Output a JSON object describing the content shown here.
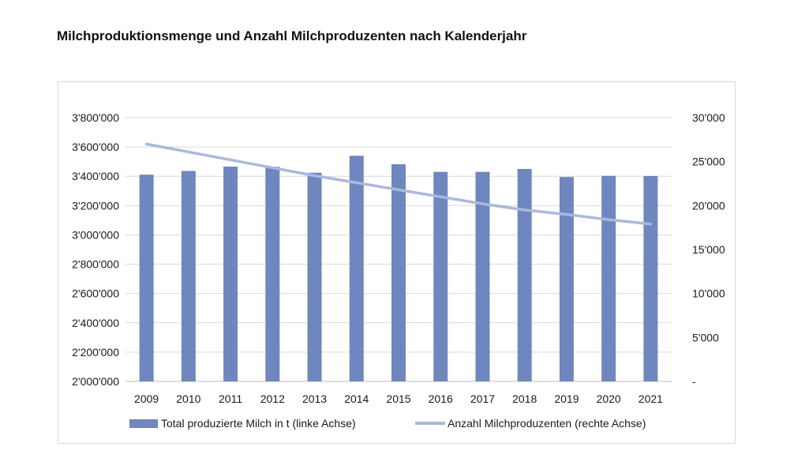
{
  "title": "Milchproduktionsmenge und Anzahl Milchproduzenten nach Kalenderjahr",
  "chart_data": {
    "type": "bar",
    "title": "Milchproduktionsmenge und Anzahl Milchproduzenten nach Kalenderjahr",
    "categories": [
      "2009",
      "2010",
      "2011",
      "2012",
      "2013",
      "2014",
      "2015",
      "2016",
      "2017",
      "2018",
      "2019",
      "2020",
      "2021"
    ],
    "series": [
      {
        "name": "Total produzierte Milch in t (linke Achse)",
        "type": "bar",
        "axis": "left",
        "color": "#6f86bf",
        "values": [
          3411000,
          3436000,
          3466000,
          3465000,
          3424000,
          3540000,
          3482000,
          3430000,
          3430000,
          3450000,
          3395000,
          3403000,
          3402000
        ]
      },
      {
        "name": "Anzahl Milchproduzenten (rechte Achse)",
        "type": "line",
        "axis": "right",
        "color": "#aab9db",
        "values": [
          27000,
          26100,
          25200,
          24300,
          23400,
          22600,
          21800,
          21000,
          20200,
          19500,
          19000,
          18400,
          17900
        ]
      }
    ],
    "left_axis": {
      "ylim": [
        2000000,
        3800000
      ],
      "ticks": [
        2000000,
        2200000,
        2400000,
        2600000,
        2800000,
        3000000,
        3200000,
        3400000,
        3600000,
        3800000
      ],
      "tick_labels": [
        "2'000'000",
        "2'200'000",
        "2'400'000",
        "2'600'000",
        "2'800'000",
        "3'000'000",
        "3'200'000",
        "3'400'000",
        "3'600'000",
        "3'800'000"
      ]
    },
    "right_axis": {
      "ylim": [
        0,
        30000
      ],
      "ticks": [
        0,
        5000,
        10000,
        15000,
        20000,
        25000,
        30000
      ],
      "tick_labels": [
        "-",
        "5'000",
        "10'000",
        "15'000",
        "20'000",
        "25'000",
        "30'000"
      ]
    },
    "grid": true,
    "legend_position": "bottom"
  }
}
